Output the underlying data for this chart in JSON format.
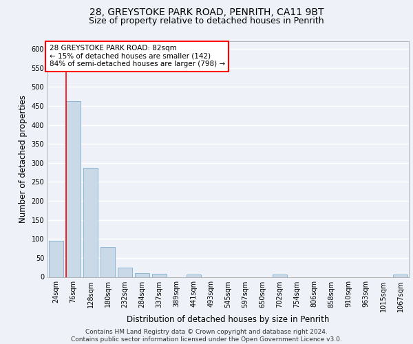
{
  "title_line1": "28, GREYSTOKE PARK ROAD, PENRITH, CA11 9BT",
  "title_line2": "Size of property relative to detached houses in Penrith",
  "xlabel": "Distribution of detached houses by size in Penrith",
  "ylabel": "Number of detached properties",
  "categories": [
    "24sqm",
    "76sqm",
    "128sqm",
    "180sqm",
    "232sqm",
    "284sqm",
    "337sqm",
    "389sqm",
    "441sqm",
    "493sqm",
    "545sqm",
    "597sqm",
    "650sqm",
    "702sqm",
    "754sqm",
    "806sqm",
    "858sqm",
    "910sqm",
    "963sqm",
    "1015sqm",
    "1067sqm"
  ],
  "values": [
    95,
    462,
    287,
    78,
    24,
    10,
    8,
    0,
    6,
    0,
    0,
    0,
    0,
    7,
    0,
    0,
    0,
    0,
    0,
    0,
    6
  ],
  "bar_color": "#c9d9e8",
  "bar_edge_color": "#7fafd0",
  "annotation_text_line1": "28 GREYSTOKE PARK ROAD: 82sqm",
  "annotation_text_line2": "← 15% of detached houses are smaller (142)",
  "annotation_text_line3": "84% of semi-detached houses are larger (798) →",
  "annotation_box_color": "white",
  "annotation_box_edge_color": "red",
  "vline_color": "red",
  "ylim": [
    0,
    620
  ],
  "yticks": [
    0,
    50,
    100,
    150,
    200,
    250,
    300,
    350,
    400,
    450,
    500,
    550,
    600
  ],
  "footer_line1": "Contains HM Land Registry data © Crown copyright and database right 2024.",
  "footer_line2": "Contains public sector information licensed under the Open Government Licence v3.0.",
  "bg_color": "#eef2f8",
  "plot_bg_color": "#eef2f8",
  "grid_color": "#ffffff",
  "title_fontsize": 10,
  "subtitle_fontsize": 9,
  "axis_label_fontsize": 8.5,
  "tick_fontsize": 7,
  "annotation_fontsize": 7.5,
  "footer_fontsize": 6.5
}
